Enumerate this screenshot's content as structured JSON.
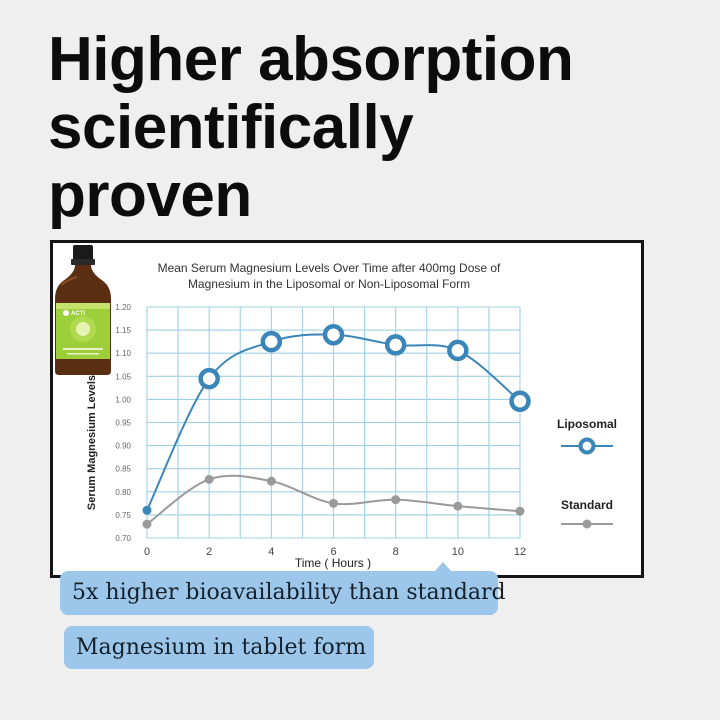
{
  "headline": [
    "Higher absorption",
    "scientifically",
    "proven"
  ],
  "chart_data": {
    "type": "line",
    "title": [
      "Mean Serum Magnesium Levels Over Time after 400mg Dose of",
      "Magnesium in the Liposomal or Non-Liposomal Form"
    ],
    "xlabel": "Time ( Hours )",
    "ylabel": "Serum Magnesium Levels ( µg/L )",
    "xlim": [
      0,
      12
    ],
    "ylim": [
      0.7,
      1.2
    ],
    "x_ticks": [
      "0",
      "2",
      "4",
      "6",
      "8",
      "10",
      "12"
    ],
    "y_ticks": [
      "0.70",
      "0.75",
      "0.80",
      "0.85",
      "0.90",
      "0.95",
      "1.00",
      "1.05",
      "1.10",
      "1.15",
      "1.20"
    ],
    "grid": true,
    "series": [
      {
        "name": "Liposomal",
        "color": "#3b86b8",
        "x": [
          0,
          2,
          4,
          6,
          8,
          10,
          12
        ],
        "y": [
          0.76,
          1.045,
          1.125,
          1.14,
          1.118,
          1.106,
          0.996
        ]
      },
      {
        "name": "Standard",
        "color": "#9a9a9a",
        "x": [
          0,
          2,
          4,
          6,
          8,
          10,
          12
        ],
        "y": [
          0.73,
          0.827,
          0.823,
          0.775,
          0.783,
          0.769,
          0.758
        ]
      }
    ],
    "legend": "right"
  },
  "product": {
    "brand": "ACTI"
  },
  "callouts": [
    "5x higher bioavailability than standard",
    "Magnesium in tablet form"
  ]
}
